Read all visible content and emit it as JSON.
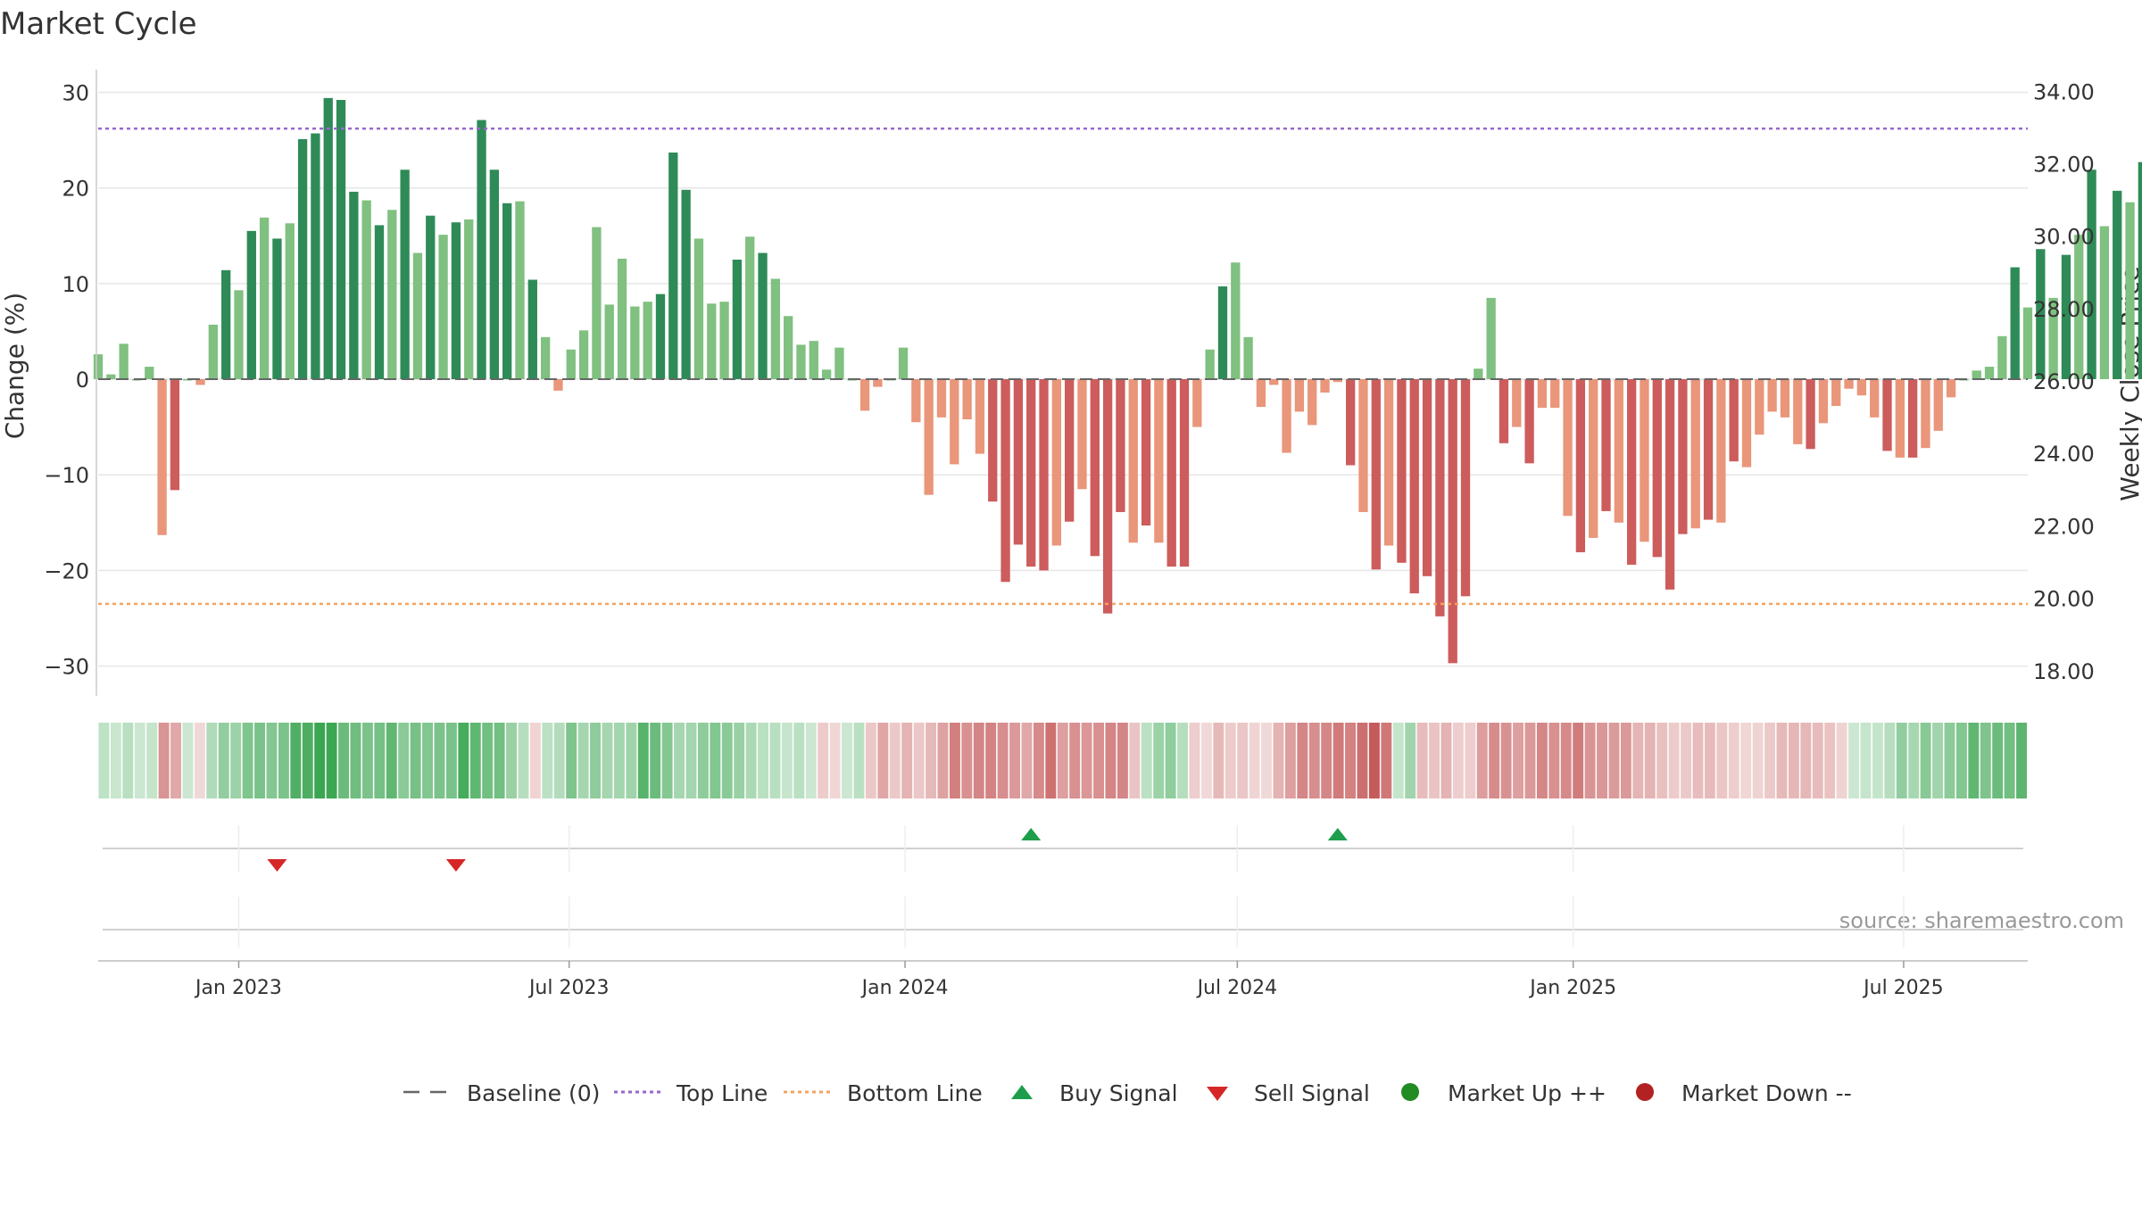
{
  "chart_data": {
    "type": "bar",
    "title": "Market Cycle",
    "ylabel": "Change (%)",
    "y2label": "Weekly Close Price",
    "ylim": [
      -32,
      32
    ],
    "y2lim": [
      17.6,
      34.5
    ],
    "yticks": [
      30,
      20,
      10,
      0,
      -10,
      -20,
      -30
    ],
    "ytick_labels": [
      "30",
      "20",
      "10",
      "0",
      "−10",
      "−20",
      "−30"
    ],
    "y2ticks": [
      34,
      32,
      30,
      28,
      26,
      24,
      22,
      20,
      18
    ],
    "y2tick_labels": [
      "34.00",
      "32.00",
      "30.00",
      "28.00",
      "26.00",
      "24.00",
      "22.00",
      "20.00",
      "18.00"
    ],
    "xlim": [
      "2022-10-16",
      "2025-09-07"
    ],
    "xticks": [
      "2023-01-01",
      "2023-07-01",
      "2024-01-01",
      "2024-07-01",
      "2025-01-01",
      "2025-07-01"
    ],
    "xtick_labels": [
      "Jan 2023",
      "Jul 2023",
      "Jan 2024",
      "Jul 2024",
      "Jan 2025",
      "Jul 2025"
    ],
    "grid": true,
    "legend_position": "bottom-center",
    "start_date": "2022-10-16",
    "values": [
      2.6,
      0.5,
      3.7,
      0,
      1.3,
      -16.3,
      -11.6,
      0,
      -0.6,
      5.7,
      11.4,
      9.3,
      15.5,
      16.9,
      14.7,
      16.3,
      25.1,
      25.7,
      29.4,
      29.2,
      19.6,
      18.7,
      16.1,
      17.7,
      21.9,
      13.2,
      17.1,
      15.1,
      16.4,
      16.7,
      27.1,
      21.9,
      18.4,
      18.6,
      10.4,
      4.4,
      -1.2,
      3.1,
      5.1,
      15.9,
      7.8,
      12.6,
      7.6,
      8.1,
      8.9,
      23.7,
      19.8,
      14.7,
      7.9,
      8.1,
      12.5,
      14.9,
      13.2,
      10.5,
      6.6,
      3.6,
      4.0,
      1.0,
      3.3,
      0,
      -3.3,
      -0.8,
      0,
      3.3,
      -4.5,
      -12.1,
      -4.0,
      -8.9,
      -4.2,
      -7.8,
      -12.8,
      -21.2,
      -17.3,
      -19.6,
      -20.0,
      -17.4,
      -14.9,
      -11.5,
      -18.5,
      -24.5,
      -13.9,
      -17.1,
      -15.3,
      -17.1,
      -19.6,
      -19.6,
      -5.0,
      3.1,
      9.7,
      12.2,
      4.4,
      -2.9,
      -0.6,
      -7.7,
      -3.4,
      -4.8,
      -1.4,
      -0.3,
      -9.0,
      -13.9,
      -19.9,
      -17.4,
      -19.2,
      -22.4,
      -20.6,
      -24.8,
      -29.7,
      -22.7,
      1.1,
      8.5,
      -6.7,
      -5.0,
      -8.8,
      -3.0,
      -3.0,
      -14.3,
      -18.1,
      -16.6,
      -13.8,
      -15.0,
      -19.4,
      -17.0,
      -18.6,
      -22.0,
      -16.2,
      -15.6,
      -14.7,
      -15.0,
      -8.6,
      -9.2,
      -5.8,
      -3.4,
      -4.0,
      -6.8,
      -7.3,
      -4.6,
      -2.8,
      -1.0,
      -1.7,
      -4.0,
      -7.5,
      -8.2,
      -8.2,
      -7.2,
      -5.4,
      -1.9,
      0,
      0.9,
      1.3,
      4.5,
      11.7,
      7.5,
      13.6,
      8.5,
      13.0,
      15.1,
      21.9,
      16.0,
      19.7,
      18.5,
      22.7
    ],
    "colors": {
      "up_strong": "#2e8b57",
      "up_weak": "#80c080",
      "down_strong": "#cd5c5c",
      "down_weak": "#e9967a",
      "top_line": "#9966cc",
      "bottom_line": "#f4a460",
      "baseline": "#666666",
      "buy": "#1e9e4a",
      "sell": "#d62728",
      "market_up": "#228b22",
      "market_down": "#b22222"
    },
    "reference_lines": [
      {
        "name": "Top Line",
        "value": 26.2
      },
      {
        "name": "Bottom Line",
        "value": -23.5
      }
    ],
    "buy_signals": [
      "2024-03-10",
      "2024-08-25"
    ],
    "sell_signals": [
      "2023-01-22",
      "2023-04-30"
    ],
    "legend": [
      {
        "key": "baseline",
        "label": "Baseline (0)",
        "marker": "dash"
      },
      {
        "key": "top",
        "label": "Top Line",
        "marker": "dot-purple"
      },
      {
        "key": "bottom",
        "label": "Bottom Line",
        "marker": "dot-orange"
      },
      {
        "key": "buy",
        "label": "Buy Signal",
        "marker": "triangle-up"
      },
      {
        "key": "sell",
        "label": "Sell Signal",
        "marker": "triangle-down"
      },
      {
        "key": "mup",
        "label": "Market Up ++",
        "marker": "circle-green"
      },
      {
        "key": "mdown",
        "label": "Market Down --",
        "marker": "circle-red"
      }
    ],
    "source": "source: sharemaestro.com"
  }
}
